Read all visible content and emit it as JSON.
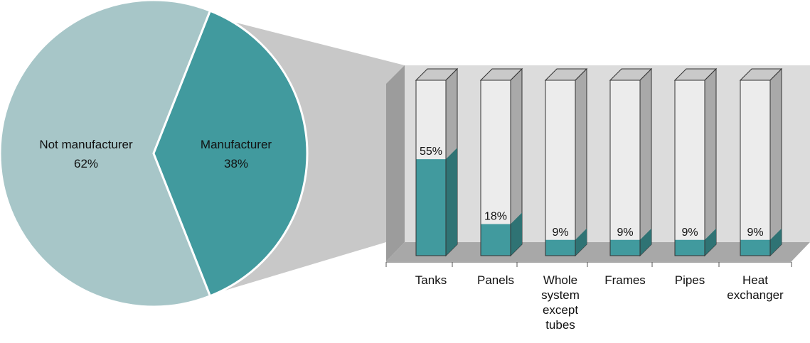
{
  "chart_data": [
    {
      "type": "pie",
      "slices": [
        {
          "label_line1": "Not manufacturer",
          "label_line2": "62%",
          "value": 62
        },
        {
          "label_line1": "Manufacturer",
          "label_line2": "38%",
          "value": 38
        }
      ]
    },
    {
      "type": "bar",
      "categories": [
        [
          "Tanks"
        ],
        [
          "Panels"
        ],
        [
          "Whole",
          "system",
          "except",
          "tubes"
        ],
        [
          "Frames"
        ],
        [
          "Pipes"
        ],
        [
          "Heat",
          "exchanger"
        ]
      ],
      "values": [
        55,
        18,
        9,
        9,
        9,
        9
      ],
      "value_labels": [
        "55%",
        "18%",
        "9%",
        "9%",
        "9%",
        "9%"
      ],
      "ylim": [
        0,
        100
      ]
    }
  ],
  "colors": {
    "not_manufacturer": "#a7c6c8",
    "manufacturer": "#419a9e",
    "manufacturer_dark": "#2f7374",
    "bar_empty": "#ececec",
    "bar_side": "#a9a9a9",
    "bar_top": "#c9c9c9",
    "panel_back": "#dcdcdc",
    "panel_wall": "#9c9c9c",
    "panel_floor": "#a8a8a8",
    "connector": "#c8c8c8",
    "axis": "#555555"
  }
}
